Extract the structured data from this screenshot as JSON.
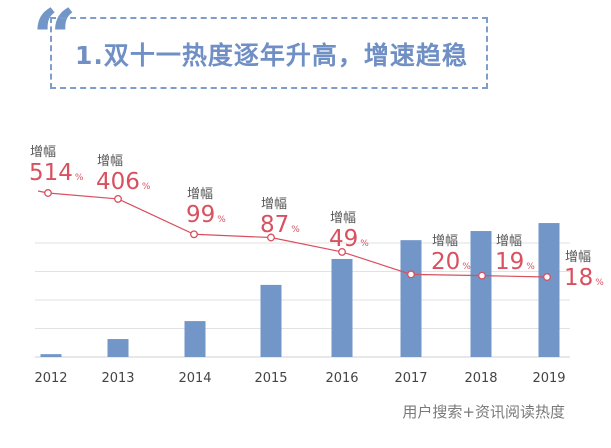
{
  "header": {
    "quote_mark": "“",
    "title": "1.双十一热度逐年升高，增速趋稳"
  },
  "chart_data": {
    "type": "bar",
    "title": "1.双十一热度逐年升高，增速趋稳",
    "categories": [
      "2012",
      "2013",
      "2014",
      "2015",
      "2016",
      "2017",
      "2018",
      "2019"
    ],
    "series": [
      {
        "name": "用户搜索+资讯阅读热度",
        "type": "bar",
        "values": [
          0.1,
          0.63,
          1.26,
          2.53,
          3.44,
          4.1,
          4.42,
          4.7
        ],
        "color": "#7396c8"
      },
      {
        "name": "增幅",
        "type": "line",
        "unit": "%",
        "values": [
          514,
          406,
          99,
          87,
          49,
          20,
          19,
          18
        ],
        "color": "#d9505f"
      }
    ],
    "growth_label": "增幅",
    "percent_sign": "%",
    "xlabel": "用户搜索+资讯阅读热度",
    "ylabel": "",
    "grid": true
  }
}
